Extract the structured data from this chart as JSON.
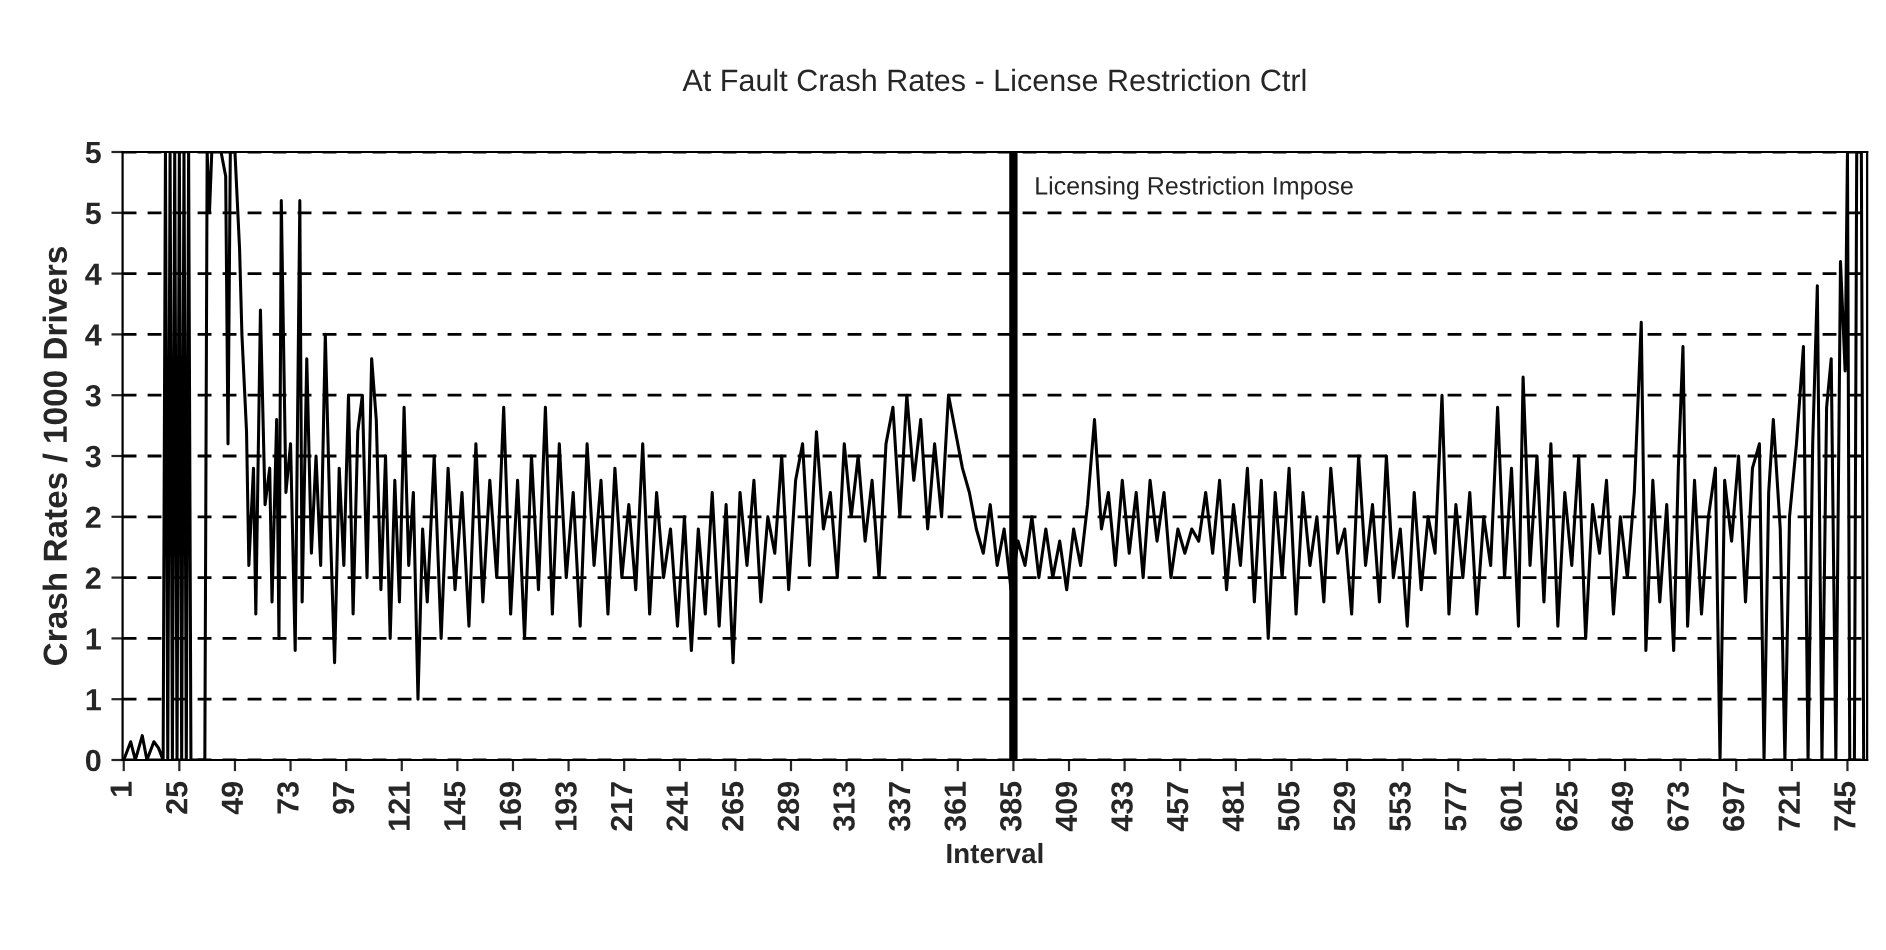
{
  "chart_data": {
    "type": "line",
    "title": "At Fault Crash Rates - License Restriction Ctrl",
    "xlabel": "Interval",
    "ylabel": "Crash Rates / 1000 Drivers",
    "series": [
      {
        "color": "#000000",
        "x": [
          1,
          4,
          6,
          9,
          11,
          14,
          16,
          18,
          19,
          20,
          21,
          22,
          23,
          24,
          25,
          26,
          27,
          28,
          29,
          30,
          36,
          37,
          38,
          39,
          41,
          43,
          45,
          46,
          47,
          49,
          51,
          52,
          54,
          55,
          57,
          58,
          60,
          62,
          64,
          65,
          67,
          68,
          69,
          71,
          73,
          75,
          77,
          78,
          80,
          82,
          84,
          86,
          88,
          90,
          92,
          94,
          96,
          98,
          100,
          102,
          104,
          106,
          108,
          110,
          112,
          114,
          116,
          118,
          120,
          122,
          124,
          126,
          128,
          130,
          132,
          135,
          138,
          141,
          144,
          147,
          150,
          153,
          156,
          159,
          162,
          165,
          168,
          171,
          174,
          177,
          180,
          183,
          186,
          189,
          192,
          195,
          198,
          201,
          204,
          207,
          210,
          213,
          216,
          219,
          222,
          225,
          228,
          231,
          234,
          237,
          240,
          243,
          246,
          249,
          252,
          255,
          258,
          261,
          264,
          267,
          270,
          273,
          276,
          279,
          282,
          285,
          288,
          291,
          294,
          297,
          300,
          303,
          306,
          309,
          312,
          315,
          318,
          321,
          324,
          327,
          330,
          333,
          336,
          339,
          342,
          345,
          348,
          351,
          354,
          357,
          360,
          363,
          366,
          369,
          372,
          375,
          378,
          381,
          384,
          387,
          390,
          393,
          396,
          399,
          402,
          405,
          408,
          411,
          414,
          417,
          420,
          423,
          426,
          429,
          432,
          435,
          438,
          441,
          444,
          447,
          450,
          453,
          456,
          459,
          462,
          465,
          468,
          471,
          474,
          477,
          480,
          483,
          486,
          489,
          492,
          495,
          498,
          501,
          504,
          507,
          510,
          513,
          516,
          519,
          522,
          525,
          528,
          531,
          534,
          537,
          540,
          543,
          546,
          549,
          552,
          555,
          558,
          561,
          564,
          567,
          570,
          573,
          576,
          579,
          582,
          585,
          588,
          591,
          594,
          597,
          600,
          603,
          605,
          608,
          611,
          614,
          617,
          620,
          623,
          626,
          629,
          632,
          635,
          638,
          641,
          644,
          647,
          650,
          653,
          656,
          658,
          661,
          664,
          667,
          670,
          672,
          674,
          676,
          679,
          682,
          685,
          688,
          690,
          692,
          695,
          698,
          701,
          704,
          707,
          709,
          711,
          713,
          716,
          718,
          720,
          723,
          726,
          728,
          730,
          732,
          734,
          736,
          738,
          740,
          742,
          744,
          745,
          746,
          748,
          749,
          751,
          752
        ],
        "values": [
          0,
          0.15,
          0,
          0.2,
          0,
          0.15,
          0.1,
          0,
          5,
          0,
          5,
          0,
          5,
          0,
          5,
          0,
          5,
          0,
          5,
          0,
          0,
          5,
          4.5,
          5,
          5,
          5,
          4.8,
          2.6,
          5,
          5,
          4.2,
          3.5,
          2.7,
          1.6,
          2.4,
          1.2,
          3.7,
          2.1,
          2.4,
          1.3,
          2.8,
          1.0,
          4.6,
          2.2,
          2.6,
          0.9,
          4.6,
          1.3,
          3.3,
          1.7,
          2.5,
          1.6,
          3.5,
          2.0,
          0.8,
          2.4,
          1.6,
          3.0,
          1.2,
          2.7,
          3.0,
          1.5,
          3.3,
          2.8,
          1.4,
          2.5,
          1.0,
          2.3,
          1.3,
          2.9,
          1.6,
          2.2,
          0.5,
          1.9,
          1.3,
          2.5,
          1.0,
          2.4,
          1.4,
          2.2,
          1.1,
          2.6,
          1.3,
          2.3,
          1.5,
          2.9,
          1.2,
          2.3,
          1.0,
          2.5,
          1.4,
          2.9,
          1.2,
          2.6,
          1.5,
          2.2,
          1.1,
          2.6,
          1.6,
          2.3,
          1.2,
          2.4,
          1.5,
          2.1,
          1.4,
          2.6,
          1.2,
          2.2,
          1.5,
          1.9,
          1.1,
          2.0,
          0.9,
          1.9,
          1.2,
          2.2,
          1.1,
          2.1,
          0.8,
          2.2,
          1.6,
          2.3,
          1.3,
          2.0,
          1.7,
          2.5,
          1.4,
          2.3,
          2.6,
          1.6,
          2.7,
          1.9,
          2.2,
          1.5,
          2.6,
          2.0,
          2.5,
          1.8,
          2.3,
          1.5,
          2.6,
          2.9,
          2.0,
          3.0,
          2.3,
          2.8,
          1.9,
          2.6,
          2.0,
          3.0,
          2.7,
          2.4,
          2.2,
          1.9,
          1.7,
          2.1,
          1.6,
          1.9,
          1.4,
          1.8,
          1.6,
          2.0,
          1.5,
          1.9,
          1.5,
          1.8,
          1.4,
          1.9,
          1.6,
          2.1,
          2.8,
          1.9,
          2.2,
          1.6,
          2.3,
          1.7,
          2.2,
          1.5,
          2.3,
          1.8,
          2.2,
          1.5,
          1.9,
          1.7,
          1.9,
          1.8,
          2.2,
          1.7,
          2.3,
          1.4,
          2.1,
          1.6,
          2.4,
          1.3,
          2.3,
          1.0,
          2.2,
          1.5,
          2.4,
          1.2,
          2.2,
          1.6,
          2.0,
          1.3,
          2.4,
          1.7,
          1.9,
          1.2,
          2.5,
          1.6,
          2.1,
          1.3,
          2.5,
          1.5,
          1.9,
          1.1,
          2.2,
          1.4,
          2.0,
          1.7,
          3.0,
          1.2,
          2.1,
          1.5,
          2.2,
          1.2,
          2.0,
          1.6,
          2.9,
          1.5,
          2.4,
          1.1,
          3.15,
          1.6,
          2.5,
          1.3,
          2.6,
          1.1,
          2.2,
          1.6,
          2.5,
          1.0,
          2.1,
          1.7,
          2.3,
          1.2,
          2.0,
          1.5,
          2.2,
          3.6,
          0.9,
          2.3,
          1.3,
          2.1,
          0.9,
          2.4,
          3.4,
          1.1,
          2.3,
          1.2,
          2.0,
          2.4,
          0,
          2.3,
          1.8,
          2.5,
          1.3,
          2.4,
          2.6,
          0,
          2.2,
          2.8,
          1.9,
          0,
          2.0,
          2.6,
          3.4,
          0,
          2.6,
          3.9,
          0,
          2.9,
          3.3,
          0,
          4.1,
          3.2,
          5,
          0,
          0,
          5,
          5,
          0
        ]
      }
    ],
    "xlim": [
      0.5,
      753.5
    ],
    "xticks": [
      1,
      25,
      49,
      73,
      97,
      121,
      145,
      169,
      193,
      217,
      241,
      265,
      289,
      313,
      337,
      361,
      385,
      409,
      433,
      457,
      481,
      505,
      529,
      553,
      577,
      601,
      625,
      649,
      673,
      697,
      721,
      745
    ],
    "ylim": [
      0,
      5
    ],
    "yticks": [
      0,
      {
        "value": 0.5,
        "label": "1"
      },
      {
        "value": 1,
        "label": "1"
      },
      {
        "value": 1.5,
        "label": "2"
      },
      {
        "value": 2,
        "label": "2"
      },
      {
        "value": 2.5,
        "label": "3"
      },
      {
        "value": 3,
        "label": "3"
      },
      {
        "value": 3.5,
        "label": "4"
      },
      {
        "value": 4,
        "label": "4"
      },
      {
        "value": 4.5,
        "label": "5"
      },
      {
        "value": 5,
        "label": "5"
      }
    ],
    "grid": "y",
    "line_style": "solid",
    "marker": "none",
    "ref_lines": [
      {
        "axis": "x",
        "value": 385,
        "label": "Licensing Restriction Impose",
        "color": "#000000"
      }
    ]
  }
}
